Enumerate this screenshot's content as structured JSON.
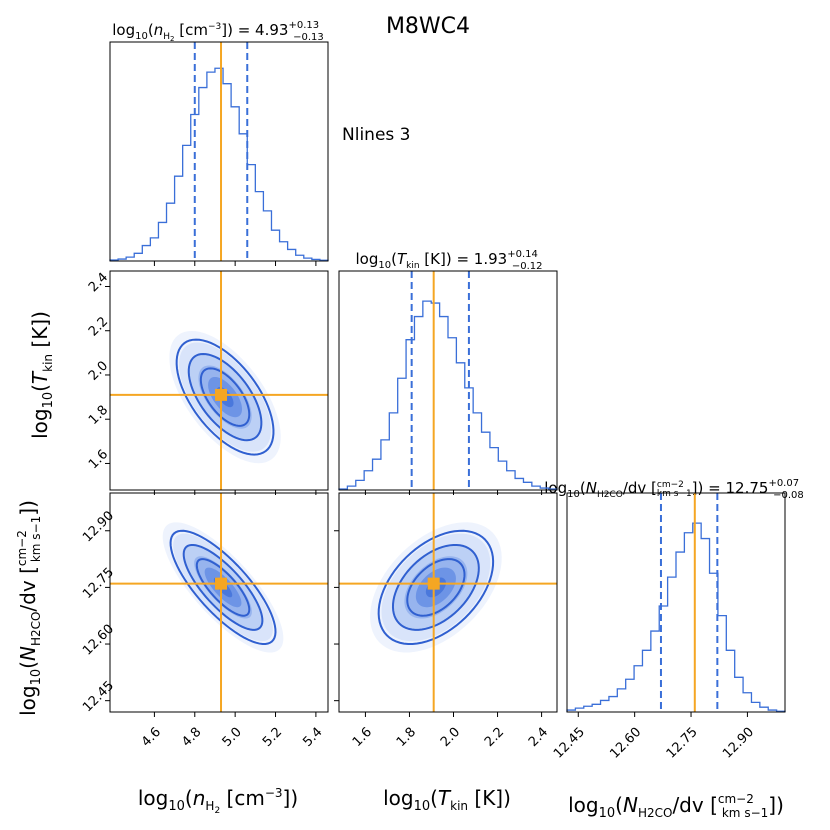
{
  "title": "M8WC4",
  "annotation": "Nlines 3",
  "colors": {
    "histogram": "#3a6fd8",
    "contour": "#3060d0",
    "truth": "#f5a623",
    "frame": "#000000"
  },
  "chart_data": {
    "type": "corner",
    "title": "M8WC4",
    "annotation": "Nlines 3",
    "parameters": [
      {
        "key": "log_nH2",
        "label_text": "log10(n_H2 [cm^-3])",
        "title_text": "log10(n_H2 [cm^-3]) = 4.93 +0.13 -0.13",
        "median": 4.93,
        "err_plus": 0.13,
        "err_minus": 0.13,
        "truth": 4.93,
        "range": [
          4.38,
          5.46
        ],
        "ticks": [
          "4.6",
          "4.8",
          "5.0",
          "5.2",
          "5.4"
        ]
      },
      {
        "key": "log_Tkin",
        "label_text": "log10(T_kin [K])",
        "title_text": "log10(T_kin [K]) = 1.93 +0.14 -0.12",
        "median": 1.93,
        "err_plus": 0.14,
        "err_minus": 0.12,
        "truth": 1.91,
        "range": [
          1.48,
          2.47
        ],
        "ticks": [
          "1.6",
          "1.8",
          "2.0",
          "2.2",
          "2.4"
        ]
      },
      {
        "key": "log_NH2CO",
        "label_text": "log10(N_H2CO/dv [cm^-2 / km s^-1])",
        "title_text": "log10(N_H2CO/dv [cm^-2 / km s^-1]) = 12.75 +0.07 -0.08",
        "median": 12.75,
        "err_plus": 0.07,
        "err_minus": 0.08,
        "truth": 12.76,
        "range": [
          12.42,
          13.0
        ],
        "ticks": [
          "12.45",
          "12.60",
          "12.75",
          "12.90"
        ]
      }
    ],
    "histograms": {
      "log_nH2": [
        0.005,
        0.01,
        0.02,
        0.04,
        0.08,
        0.12,
        0.2,
        0.3,
        0.44,
        0.6,
        0.76,
        0.9,
        0.98,
        1.0,
        0.92,
        0.8,
        0.66,
        0.5,
        0.36,
        0.26,
        0.16,
        0.1,
        0.06,
        0.03,
        0.015,
        0.008,
        0.004
      ],
      "log_Tkin": [
        0.005,
        0.02,
        0.05,
        0.1,
        0.16,
        0.26,
        0.4,
        0.58,
        0.78,
        0.9,
        0.98,
        0.97,
        0.9,
        0.79,
        0.66,
        0.53,
        0.4,
        0.3,
        0.22,
        0.15,
        0.1,
        0.06,
        0.04,
        0.02,
        0.01,
        0.005
      ],
      "log_NH2CO": [
        0.01,
        0.02,
        0.03,
        0.04,
        0.06,
        0.08,
        0.12,
        0.17,
        0.24,
        0.32,
        0.42,
        0.55,
        0.7,
        0.83,
        0.93,
        0.98,
        0.9,
        0.72,
        0.5,
        0.32,
        0.18,
        0.1,
        0.05,
        0.025,
        0.01,
        0.004
      ]
    },
    "pairs": [
      {
        "x": "log_nH2",
        "y": "log_Tkin",
        "center": [
          4.95,
          1.9
        ],
        "sx": 0.12,
        "sy": 0.13,
        "rho": -0.6
      },
      {
        "x": "log_nH2",
        "y": "log_NH2CO",
        "center": [
          4.94,
          12.75
        ],
        "sx": 0.13,
        "sy": 0.075,
        "rho": -0.78
      },
      {
        "x": "log_Tkin",
        "y": "log_NH2CO",
        "center": [
          1.92,
          12.75
        ],
        "sx": 0.13,
        "sy": 0.075,
        "rho": 0.45
      }
    ],
    "contour_levels_sigma": [
      1.0,
      1.5,
      2.0
    ],
    "quantile_lines": "dashed at 16% and 84%",
    "truth_lines": "solid orange",
    "grid": false
  }
}
